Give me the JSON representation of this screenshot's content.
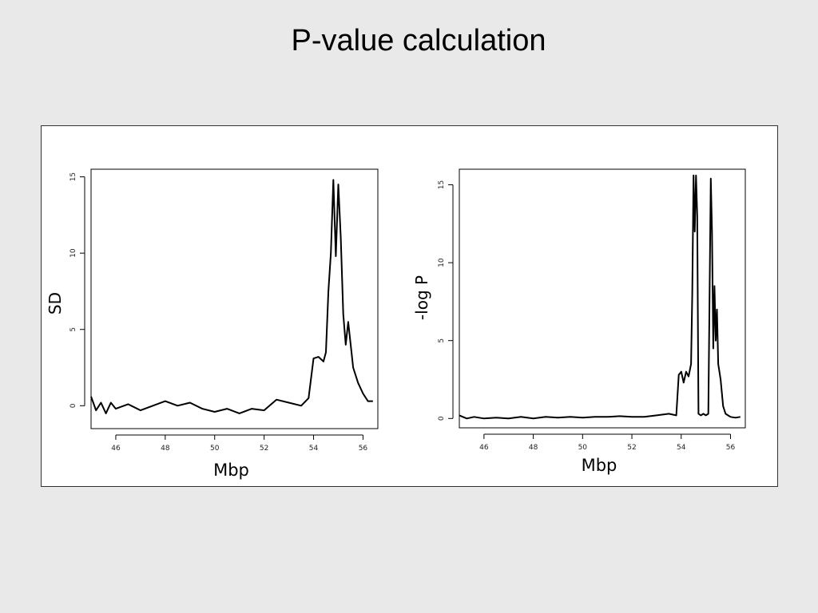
{
  "slide": {
    "title": "P-value calculation"
  },
  "chart_data": [
    {
      "type": "line",
      "xlabel": "Mbp",
      "ylabel": "SD",
      "xlim": [
        45,
        56.6
      ],
      "ylim": [
        -1.5,
        15.5
      ],
      "xticks": [
        46,
        48,
        50,
        52,
        54,
        56
      ],
      "yticks": [
        0,
        5,
        10,
        15
      ],
      "grid": false,
      "series": [
        {
          "x": [
            45.0,
            45.2,
            45.4,
            45.6,
            45.8,
            46.0,
            46.5,
            47.0,
            47.5,
            48.0,
            48.5,
            49.0,
            49.5,
            50.0,
            50.5,
            51.0,
            51.5,
            52.0,
            52.5,
            53.0,
            53.5,
            53.8,
            54.0,
            54.2,
            54.4,
            54.5,
            54.6,
            54.7,
            54.8,
            54.9,
            55.0,
            55.1,
            55.2,
            55.3,
            55.4,
            55.6,
            55.8,
            56.0,
            56.2,
            56.4
          ],
          "y": [
            0.6,
            -0.3,
            0.2,
            -0.5,
            0.2,
            -0.2,
            0.1,
            -0.3,
            0.0,
            0.3,
            0.0,
            0.2,
            -0.2,
            -0.4,
            -0.2,
            -0.5,
            -0.2,
            -0.3,
            0.4,
            0.2,
            0.0,
            0.5,
            3.1,
            3.2,
            2.9,
            3.5,
            7.5,
            10.0,
            14.8,
            9.8,
            14.5,
            11.0,
            6.0,
            4.0,
            5.5,
            2.5,
            1.5,
            0.8,
            0.3,
            0.3
          ]
        }
      ]
    },
    {
      "type": "line",
      "xlabel": "Mbp",
      "ylabel": "-log P",
      "xlim": [
        45,
        56.6
      ],
      "ylim": [
        -0.6,
        16.0
      ],
      "xticks": [
        46,
        48,
        50,
        52,
        54,
        56
      ],
      "yticks": [
        0,
        5,
        10,
        15
      ],
      "grid": false,
      "series": [
        {
          "x": [
            45.0,
            45.3,
            45.6,
            46.0,
            46.5,
            47.0,
            47.5,
            48.0,
            48.5,
            49.0,
            49.5,
            50.0,
            50.5,
            51.0,
            51.5,
            52.0,
            52.5,
            53.0,
            53.5,
            53.8,
            53.9,
            54.0,
            54.1,
            54.2,
            54.3,
            54.4,
            54.45,
            54.5,
            54.55,
            54.6,
            54.65,
            54.7,
            54.8,
            54.9,
            55.0,
            55.1,
            55.2,
            55.25,
            55.3,
            55.35,
            55.4,
            55.45,
            55.5,
            55.6,
            55.7,
            55.8,
            55.9,
            56.0,
            56.2,
            56.4
          ],
          "y": [
            0.2,
            0.0,
            0.1,
            0.0,
            0.05,
            0.0,
            0.1,
            0.0,
            0.1,
            0.05,
            0.1,
            0.05,
            0.1,
            0.1,
            0.15,
            0.1,
            0.1,
            0.2,
            0.3,
            0.2,
            2.8,
            3.0,
            2.3,
            3.0,
            2.7,
            3.5,
            8.0,
            15.6,
            12.0,
            15.6,
            13.0,
            0.3,
            0.2,
            0.3,
            0.2,
            0.3,
            15.4,
            12.0,
            4.5,
            8.5,
            5.0,
            7.0,
            3.5,
            2.5,
            0.8,
            0.3,
            0.2,
            0.1,
            0.05,
            0.1
          ]
        }
      ]
    }
  ]
}
